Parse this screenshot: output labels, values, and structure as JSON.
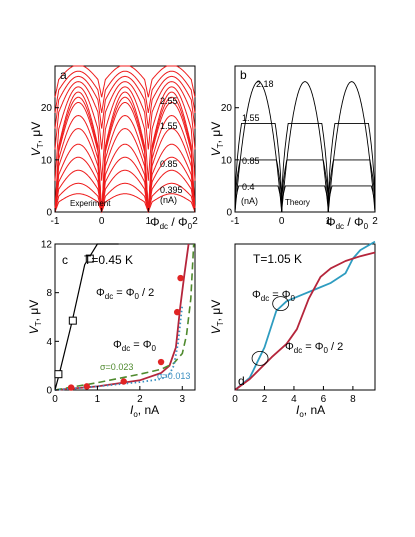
{
  "colors": {
    "red": "#ee1c1c",
    "darkred": "#b5253b",
    "blue": "#2e9cc0",
    "green": "#4f8a2e",
    "dotblue": "#3b8fc0",
    "marker": "#e12424",
    "black": "#000000"
  },
  "chart_data": [
    {
      "panel": "a",
      "type": "line",
      "xlim": [
        -1,
        2
      ],
      "ylim": [
        0,
        28
      ],
      "xticks": [
        "-1",
        "0",
        "1",
        "2"
      ],
      "yticks": [
        "0",
        "10",
        "20"
      ],
      "ylabel": "V",
      "ylabel_sub": "T",
      "ylabel_unit": ", μV",
      "xlabel_phi": "Φ",
      "xlabel_sub": "dc",
      "xlabel_mid": " / Φ",
      "xlabel_sub2": "0",
      "annotations": [
        "2.55",
        "1.55",
        "0.85",
        "0.395",
        "(nA)",
        "Experiment"
      ],
      "series_peaks": [
        3.5,
        5.5,
        8,
        10.5,
        13,
        16,
        18.5,
        21,
        22,
        23,
        24,
        25,
        26,
        27,
        28.2
      ],
      "series_dips": [
        0,
        0,
        0,
        0,
        0,
        0,
        0,
        0,
        0,
        0,
        6,
        12,
        16,
        19,
        22
      ]
    },
    {
      "panel": "b",
      "type": "line",
      "xlim": [
        -1,
        2
      ],
      "ylim": [
        0,
        28
      ],
      "xticks": [
        "-1",
        "0",
        "1",
        "2"
      ],
      "yticks": [
        "0",
        "10",
        "20"
      ],
      "ylabel": "V",
      "ylabel_sub": "T",
      "ylabel_unit": ", μV",
      "xlabel_phi": "Φ",
      "xlabel_sub": "dc",
      "xlabel_mid": " / Φ",
      "xlabel_sub2": "0",
      "annotations": [
        "2.18",
        "1.55",
        "0.85",
        "0.4",
        "(nA)",
        "Theory"
      ],
      "series_peaks": [
        5,
        10,
        17,
        25
      ]
    },
    {
      "panel": "c",
      "type": "line",
      "xlim": [
        0,
        3.3
      ],
      "ylim": [
        0,
        12
      ],
      "xticks": [
        "0",
        "1",
        "2",
        "3"
      ],
      "yticks": [
        "0",
        "4",
        "8",
        "12"
      ],
      "ylabel": "V",
      "ylabel_sub": "T",
      "ylabel_unit": ", μV",
      "xlabel": "I",
      "xlabel_sub": "o",
      "xlabel_unit": ", nA",
      "annotations": [
        "T=0.45 K",
        "Φ",
        "dc",
        " = Φ",
        "0",
        " / 2",
        "Φ",
        "dc",
        " = Φ",
        "0",
        "σ=0.023",
        "σ=0.013"
      ],
      "series": [
        {
          "name": "Φdc = Φ0/2",
          "x": [
            0,
            0.1,
            0.4,
            0.7,
            1.0,
            1.5
          ],
          "y": [
            0,
            1.3,
            5.6,
            10.3,
            12,
            12
          ]
        },
        {
          "name": "Φdc = Φ0",
          "x": [
            0,
            1,
            2,
            2.5,
            2.7,
            2.85,
            2.95,
            3.05,
            3.15
          ],
          "y": [
            0,
            0.3,
            0.8,
            1.4,
            2.0,
            3.5,
            6.8,
            9.5,
            12
          ]
        },
        {
          "name": "σ=0.023",
          "x": [
            0,
            1,
            2,
            2.5,
            2.8,
            3.0,
            3.1,
            3.2,
            3.27
          ],
          "y": [
            0,
            0.6,
            1.3,
            1.7,
            2.2,
            3.0,
            4.5,
            7.5,
            12
          ]
        },
        {
          "name": "σ=0.013",
          "x": [
            0,
            1,
            2,
            2.5,
            2.7,
            2.8,
            2.9,
            3.0
          ],
          "y": [
            0,
            0.3,
            0.65,
            0.9,
            1.3,
            2.0,
            3.8,
            7.0
          ]
        }
      ],
      "markers_square": {
        "x": [
          0.08,
          0.42,
          0.82
        ],
        "y": [
          1.3,
          5.7,
          10.8
        ]
      },
      "markers_circle": {
        "x": [
          0.38,
          0.75,
          1.62,
          2.5,
          2.88,
          2.96
        ],
        "y": [
          0.2,
          0.3,
          0.7,
          2.3,
          6.4,
          9.2
        ]
      }
    },
    {
      "panel": "d",
      "type": "line",
      "xlim": [
        0,
        9.5
      ],
      "ylim": [
        0,
        12
      ],
      "xticks": [
        "0",
        "2",
        "4",
        "6",
        "8"
      ],
      "ylabel": "V",
      "ylabel_sub": "T",
      "ylabel_unit": ", μV",
      "xlabel": "I",
      "xlabel_sub": "o",
      "xlabel_unit": ", nA",
      "annotations": [
        "T=1.05 K",
        "Φ",
        "dc",
        " = Φ",
        "0",
        "Φ",
        "dc",
        " = Φ",
        "0",
        " / 2"
      ],
      "series": [
        {
          "name": "Φdc = Φ0",
          "x": [
            0,
            1,
            2,
            2.8,
            3.5,
            4.5,
            5.5,
            6.5,
            7.5,
            8.0,
            8.5,
            9.5
          ],
          "y": [
            0,
            1.0,
            3.5,
            6.5,
            7.3,
            7.8,
            8.3,
            8.8,
            9.6,
            10.8,
            11.5,
            12.2
          ]
        },
        {
          "name": "Φdc = Φ0/2",
          "x": [
            0,
            1,
            2,
            2.5,
            3.5,
            4.2,
            5.0,
            5.8,
            6.5,
            7.5,
            8.5,
            9.5
          ],
          "y": [
            0,
            0.9,
            2.1,
            2.7,
            3.8,
            5.0,
            7.5,
            9.3,
            10.0,
            10.6,
            11.0,
            11.3
          ]
        }
      ],
      "ellipses": {
        "x": [
          1.7,
          3.1
        ],
        "y": [
          2.6,
          7.1
        ]
      }
    }
  ]
}
